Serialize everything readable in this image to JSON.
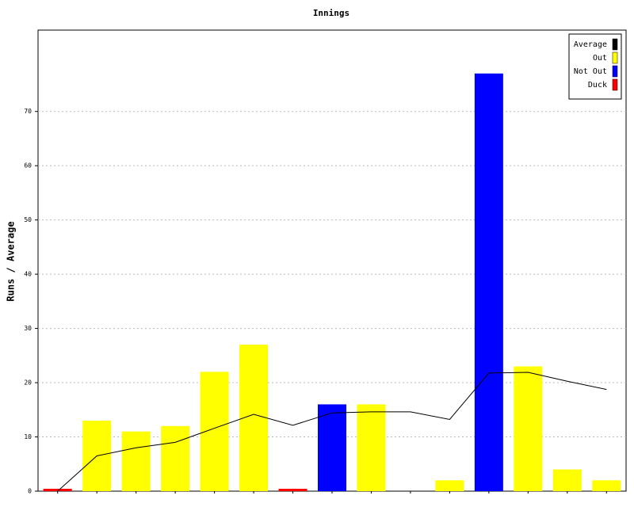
{
  "chart_data": {
    "type": "bar",
    "title": "Innings",
    "y_label": "Runs / Average",
    "categories": [
      null,
      null,
      null,
      null,
      null,
      null,
      null,
      null,
      null,
      null,
      null,
      null,
      null,
      null,
      null
    ],
    "ylim": [
      0,
      85
    ],
    "yticks": [
      0,
      10,
      20,
      30,
      40,
      50,
      60,
      70
    ],
    "grid": true,
    "legend": "top-right",
    "series": [
      {
        "name": "Average",
        "color": "#000000",
        "type": "line",
        "values": [
          0,
          6.5,
          8,
          9,
          11.6,
          14.17,
          12.14,
          14.43,
          14.63,
          14.63,
          13.22,
          21.78,
          21.9,
          20.27,
          18.75
        ]
      },
      {
        "name": "Out",
        "color": "#ffff00",
        "type": "bar",
        "values": [
          null,
          13,
          11,
          12,
          22,
          27,
          null,
          null,
          16,
          null,
          2,
          null,
          23,
          4,
          2
        ]
      },
      {
        "name": "Not Out",
        "color": "#0000ff",
        "type": "bar",
        "values": [
          null,
          null,
          null,
          null,
          null,
          null,
          null,
          16,
          null,
          null,
          null,
          77,
          null,
          null,
          null
        ]
      },
      {
        "name": "Duck",
        "color": "#ff0000",
        "type": "bar",
        "values": [
          0,
          null,
          null,
          null,
          null,
          null,
          0,
          null,
          null,
          null,
          null,
          null,
          null,
          null,
          null
        ]
      }
    ]
  }
}
